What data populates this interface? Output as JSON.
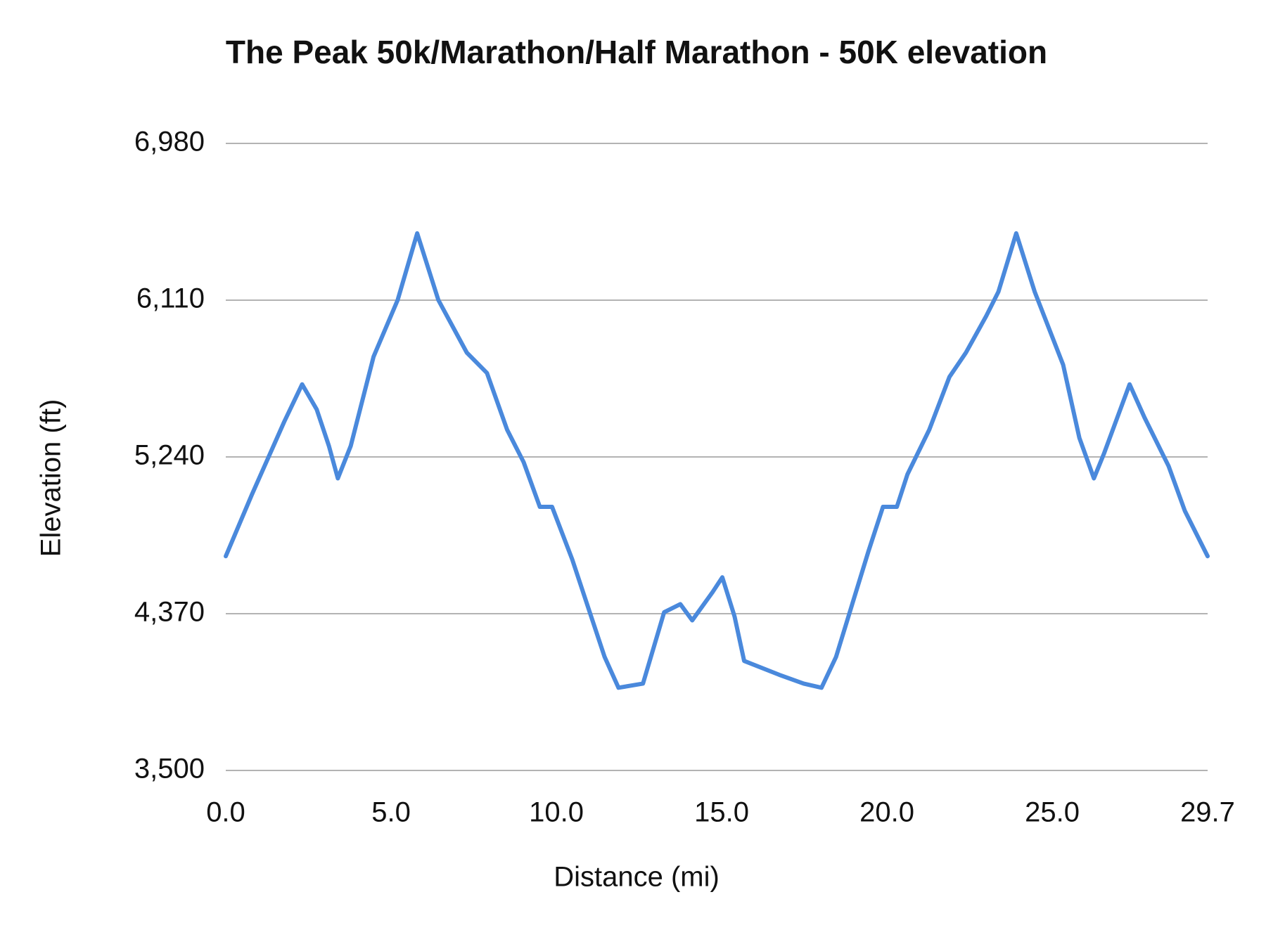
{
  "chart_data": {
    "type": "line",
    "title": "The Peak 50k/Marathon/Half Marathon - 50K elevation",
    "x_label": "Distance (mi)",
    "y_label": "Elevation (ft)",
    "x": [
      0,
      0.79,
      1.77,
      2.31,
      2.75,
      3.12,
      3.39,
      3.78,
      4.47,
      5.2,
      5.79,
      6.43,
      7.29,
      7.9,
      8.51,
      9.01,
      9.5,
      9.87,
      10.48,
      10.97,
      11.46,
      11.88,
      12.62,
      13.26,
      13.75,
      14.11,
      14.73,
      15.02,
      15.39,
      15.68,
      16.74,
      17.48,
      18.02,
      18.46,
      18.95,
      19.44,
      19.88,
      20.3,
      20.62,
      21.28,
      21.89,
      22.39,
      23.0,
      23.37,
      23.91,
      24.47,
      25.33,
      25.82,
      26.26,
      26.56,
      27.34,
      27.79,
      28.52,
      29.01,
      29.7
    ],
    "series": [
      {
        "color": "#4a89dc",
        "values": [
          4689,
          5031,
          5436,
          5643,
          5504,
          5301,
          5121,
          5301,
          5796,
          6111,
          6481,
          6111,
          5819,
          5706,
          5391,
          5211,
          4963,
          4963,
          4671,
          4400,
          4130,
          3959,
          3982,
          4378,
          4423,
          4333,
          4491,
          4572,
          4355,
          4108,
          4031,
          3982,
          3959,
          4130,
          4423,
          4716,
          4963,
          4963,
          5143,
          5391,
          5684,
          5819,
          6021,
          6156,
          6481,
          6156,
          5751,
          5346,
          5121,
          5256,
          5643,
          5459,
          5189,
          4941,
          4689
        ]
      }
    ],
    "xlim": [
      0,
      29.7
    ],
    "xticks": [
      {
        "value": 0,
        "label": "0.0"
      },
      {
        "value": 5,
        "label": "5.0"
      },
      {
        "value": 10,
        "label": "10.0"
      },
      {
        "value": 15,
        "label": "15.0"
      },
      {
        "value": 20,
        "label": "20.0"
      },
      {
        "value": 25,
        "label": "25.0"
      },
      29.7
    ],
    "ylim": [
      3500,
      6980
    ],
    "yticks": [
      {
        "value": 3500,
        "label": "3,500"
      },
      {
        "value": 4370,
        "label": "4,370"
      },
      {
        "value": 5240,
        "label": "5,240"
      },
      {
        "value": 6110,
        "label": "6,110"
      },
      {
        "value": 6980,
        "label": "6,980"
      }
    ],
    "grid": true
  }
}
